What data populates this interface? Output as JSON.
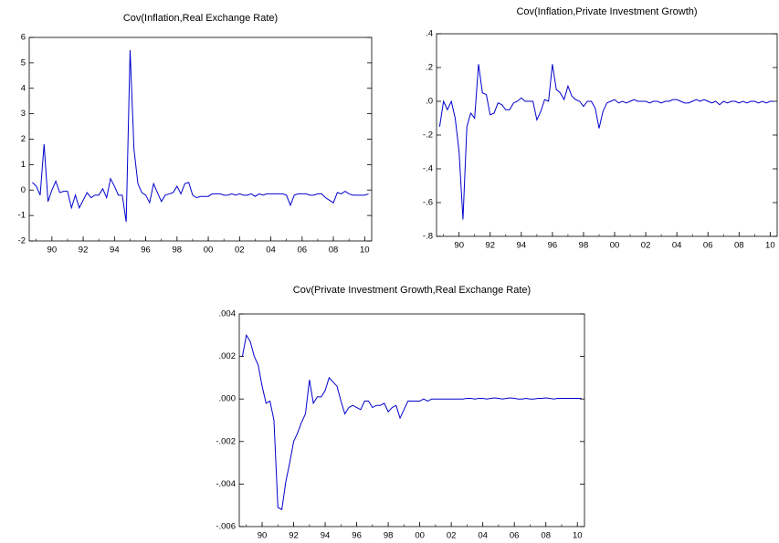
{
  "chart_data": [
    {
      "type": "line",
      "title": "Cov(Inflation,Real Exchange Rate)",
      "color": "#0000cc",
      "x": [
        88.75,
        89,
        89.25,
        89.5,
        89.75,
        90,
        90.25,
        90.5,
        90.75,
        91,
        91.25,
        91.5,
        91.75,
        92,
        92.25,
        92.5,
        92.75,
        93,
        93.25,
        93.5,
        93.75,
        94,
        94.25,
        94.5,
        94.75,
        95,
        95.25,
        95.5,
        95.75,
        96,
        96.25,
        96.5,
        96.75,
        97,
        97.25,
        97.5,
        97.75,
        98,
        98.25,
        98.5,
        98.75,
        99,
        99.25,
        99.5,
        99.75,
        100,
        100.25,
        100.5,
        100.75,
        101,
        101.25,
        101.5,
        101.75,
        102,
        102.25,
        102.5,
        102.75,
        103,
        103.25,
        103.5,
        103.75,
        104,
        104.25,
        104.5,
        104.75,
        105,
        105.25,
        105.5,
        105.75,
        106,
        106.25,
        106.5,
        106.75,
        107,
        107.25,
        107.5,
        107.75,
        108,
        108.25,
        108.5,
        108.75,
        109,
        109.25,
        109.5,
        109.75,
        110,
        110.25
      ],
      "values": [
        0.3,
        0.15,
        -0.2,
        1.8,
        -0.45,
        0.0,
        0.35,
        -0.1,
        -0.05,
        -0.05,
        -0.7,
        -0.2,
        -0.7,
        -0.4,
        -0.1,
        -0.3,
        -0.2,
        -0.2,
        0.05,
        -0.3,
        0.45,
        0.15,
        -0.2,
        -0.2,
        -1.25,
        5.5,
        1.6,
        0.25,
        -0.1,
        -0.2,
        -0.5,
        0.25,
        -0.1,
        -0.45,
        -0.2,
        -0.15,
        -0.1,
        0.15,
        -0.15,
        0.25,
        0.3,
        -0.2,
        -0.3,
        -0.25,
        -0.25,
        -0.25,
        -0.15,
        -0.15,
        -0.15,
        -0.2,
        -0.2,
        -0.15,
        -0.2,
        -0.15,
        -0.2,
        -0.2,
        -0.15,
        -0.25,
        -0.15,
        -0.2,
        -0.15,
        -0.15,
        -0.15,
        -0.15,
        -0.15,
        -0.2,
        -0.6,
        -0.2,
        -0.15,
        -0.15,
        -0.15,
        -0.2,
        -0.2,
        -0.15,
        -0.15,
        -0.3,
        -0.4,
        -0.5,
        -0.1,
        -0.15,
        -0.05,
        -0.15,
        -0.2,
        -0.2,
        -0.2,
        -0.2,
        -0.15
      ],
      "xlim": [
        88.55,
        110.45
      ],
      "ylim": [
        -2,
        6
      ],
      "xticks": [
        90,
        92,
        94,
        96,
        98,
        {
          "value": 100,
          "label": "00"
        },
        {
          "value": 102,
          "label": "02"
        },
        {
          "value": 104,
          "label": "04"
        },
        {
          "value": 106,
          "label": "06"
        },
        {
          "value": 108,
          "label": "08"
        },
        {
          "value": 110,
          "label": "10"
        }
      ],
      "yticks": [
        -2,
        -1,
        0,
        1,
        2,
        3,
        4,
        5,
        6
      ]
    },
    {
      "type": "line",
      "title": "Cov(Inflation,Private Investment Growth)",
      "color": "#0000cc",
      "x": [
        88.75,
        89,
        89.25,
        89.5,
        89.75,
        90,
        90.25,
        90.5,
        90.75,
        91,
        91.25,
        91.5,
        91.75,
        92,
        92.25,
        92.5,
        92.75,
        93,
        93.25,
        93.5,
        93.75,
        94,
        94.25,
        94.5,
        94.75,
        95,
        95.25,
        95.5,
        95.75,
        96,
        96.25,
        96.5,
        96.75,
        97,
        97.25,
        97.5,
        97.75,
        98,
        98.25,
        98.5,
        98.75,
        99,
        99.25,
        99.5,
        99.75,
        100,
        100.25,
        100.5,
        100.75,
        101,
        101.25,
        101.5,
        101.75,
        102,
        102.25,
        102.5,
        102.75,
        103,
        103.25,
        103.5,
        103.75,
        104,
        104.25,
        104.5,
        104.75,
        105,
        105.25,
        105.5,
        105.75,
        106,
        106.25,
        106.5,
        106.75,
        107,
        107.25,
        107.5,
        107.75,
        108,
        108.25,
        108.5,
        108.75,
        109,
        109.25,
        109.5,
        109.75,
        110,
        110.25
      ],
      "values": [
        -0.15,
        0.0,
        -0.05,
        0.0,
        -0.1,
        -0.3,
        -0.7,
        -0.15,
        -0.07,
        -0.1,
        0.22,
        0.05,
        0.04,
        -0.08,
        -0.07,
        -0.01,
        -0.02,
        -0.05,
        -0.05,
        -0.01,
        0.0,
        0.02,
        0.0,
        0.0,
        0.0,
        -0.11,
        -0.06,
        0.01,
        0.0,
        0.22,
        0.07,
        0.05,
        0.01,
        0.09,
        0.03,
        0.01,
        0.0,
        -0.03,
        0.0,
        0.0,
        -0.04,
        -0.16,
        -0.06,
        -0.01,
        0.0,
        0.01,
        -0.01,
        0.0,
        -0.01,
        0.0,
        0.01,
        0.0,
        0.0,
        0.0,
        -0.01,
        0.0,
        0.0,
        -0.01,
        0.0,
        0.0,
        0.01,
        0.01,
        0.0,
        -0.01,
        -0.01,
        0.0,
        0.01,
        0.0,
        0.01,
        0.0,
        -0.01,
        0.0,
        -0.02,
        0.0,
        -0.01,
        0.0,
        0.0,
        -0.01,
        0.0,
        -0.01,
        0.0,
        0.0,
        -0.01,
        0.0,
        -0.01,
        0.0,
        0.0
      ],
      "xlim": [
        88.55,
        110.45
      ],
      "ylim": [
        -0.8,
        0.4
      ],
      "xticks": [
        90,
        92,
        94,
        96,
        98,
        {
          "value": 100,
          "label": "00"
        },
        {
          "value": 102,
          "label": "02"
        },
        {
          "value": 104,
          "label": "04"
        },
        {
          "value": 106,
          "label": "06"
        },
        {
          "value": 108,
          "label": "08"
        },
        {
          "value": 110,
          "label": "10"
        }
      ],
      "yticks": [
        {
          "value": -0.8,
          "label": "-.8"
        },
        {
          "value": -0.6,
          "label": "-.6"
        },
        {
          "value": -0.4,
          "label": "-.4"
        },
        {
          "value": -0.2,
          "label": "-.2"
        },
        {
          "value": 0,
          "label": ".0"
        },
        {
          "value": 0.2,
          "label": ".2"
        },
        {
          "value": 0.4,
          "label": ".4"
        }
      ]
    },
    {
      "type": "line",
      "title": "Cov(Private Investment Growth,Real Exchange Rate)",
      "color": "#0000cc",
      "x": [
        88.75,
        89,
        89.25,
        89.5,
        89.75,
        90,
        90.25,
        90.5,
        90.75,
        91,
        91.25,
        91.5,
        91.75,
        92,
        92.25,
        92.5,
        92.75,
        93,
        93.25,
        93.5,
        93.75,
        94,
        94.25,
        94.5,
        94.75,
        95,
        95.25,
        95.5,
        95.75,
        96,
        96.25,
        96.5,
        96.75,
        97,
        97.25,
        97.5,
        97.75,
        98,
        98.25,
        98.5,
        98.75,
        99,
        99.25,
        99.5,
        99.75,
        100,
        100.25,
        100.5,
        100.75,
        101,
        101.25,
        101.5,
        101.75,
        102,
        102.25,
        102.5,
        102.75,
        103,
        103.25,
        103.5,
        103.75,
        104,
        104.25,
        104.5,
        104.75,
        105,
        105.25,
        105.5,
        105.75,
        106,
        106.25,
        106.5,
        106.75,
        107,
        107.25,
        107.5,
        107.75,
        108,
        108.25,
        108.5,
        108.75,
        109,
        109.25,
        109.5,
        109.75,
        110,
        110.25
      ],
      "values": [
        0.002,
        0.003,
        0.0027,
        0.002,
        0.0016,
        0.0006,
        -0.0002,
        -0.0001,
        -0.001,
        -0.0051,
        -0.0052,
        -0.0039,
        -0.003,
        -0.002,
        -0.0016,
        -0.0011,
        -0.0007,
        0.0009,
        -0.0002,
        0.0001,
        0.0001,
        0.0004,
        0.001,
        0.0008,
        0.0006,
        -0.0001,
        -0.0007,
        -0.0004,
        -0.0003,
        -0.0004,
        -0.0005,
        -0.0001,
        -0.0001,
        -0.0004,
        -0.0003,
        -0.0003,
        -0.0002,
        -0.0006,
        -0.0004,
        -0.0003,
        -0.0009,
        -0.0005,
        -0.0001,
        -0.0001,
        -0.0001,
        -0.0001,
        0,
        -0.0001,
        0,
        0,
        0,
        0,
        0,
        0,
        0,
        0,
        0,
        3e-05,
        3e-05,
        0,
        3e-05,
        3e-05,
        0,
        3e-05,
        5e-05,
        3e-05,
        0,
        3e-05,
        5e-05,
        3e-05,
        0,
        0,
        3e-05,
        0,
        0,
        3e-05,
        3e-05,
        5e-05,
        3e-05,
        0,
        3e-05,
        3e-05,
        3e-05,
        3e-05,
        3e-05,
        3e-05,
        3e-05
      ],
      "xlim": [
        88.55,
        110.45
      ],
      "ylim": [
        -0.006,
        0.004
      ],
      "xticks": [
        90,
        92,
        94,
        96,
        98,
        {
          "value": 100,
          "label": "00"
        },
        {
          "value": 102,
          "label": "02"
        },
        {
          "value": 104,
          "label": "04"
        },
        {
          "value": 106,
          "label": "06"
        },
        {
          "value": 108,
          "label": "08"
        },
        {
          "value": 110,
          "label": "10"
        }
      ],
      "yticks": [
        {
          "value": -0.006,
          "label": "-.006"
        },
        {
          "value": -0.004,
          "label": "-.004"
        },
        {
          "value": -0.002,
          "label": "-.002"
        },
        {
          "value": 0,
          "label": ".000"
        },
        {
          "value": 0.002,
          "label": ".002"
        },
        {
          "value": 0.004,
          "label": ".004"
        }
      ]
    }
  ]
}
